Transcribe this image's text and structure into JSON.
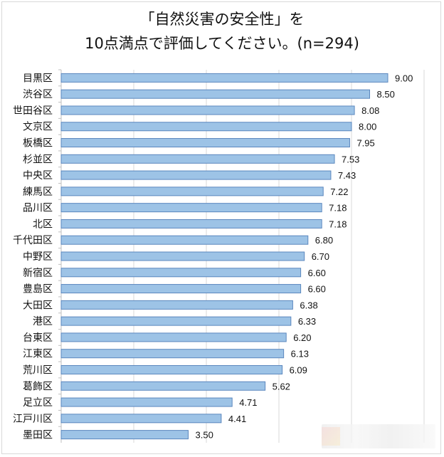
{
  "chart_data": {
    "type": "bar",
    "orientation": "horizontal",
    "title_line1": "「自然災害の安全性」を",
    "title_line2": "10点満点で評価してください。(n=294)",
    "categories": [
      "目黒区",
      "渋谷区",
      "世田谷区",
      "文京区",
      "板橋区",
      "杉並区",
      "中央区",
      "練馬区",
      "品川区",
      "北区",
      "千代田区",
      "中野区",
      "新宿区",
      "豊島区",
      "大田区",
      "港区",
      "台東区",
      "江東区",
      "荒川区",
      "葛飾区",
      "足立区",
      "江戸川区",
      "墨田区"
    ],
    "values": [
      9.0,
      8.5,
      8.08,
      8.0,
      7.95,
      7.53,
      7.43,
      7.22,
      7.18,
      7.18,
      6.8,
      6.7,
      6.6,
      6.6,
      6.38,
      6.33,
      6.2,
      6.13,
      6.09,
      5.62,
      4.71,
      4.41,
      3.5
    ],
    "value_labels": [
      "9.00",
      "8.50",
      "8.08",
      "8.00",
      "7.95",
      "7.53",
      "7.43",
      "7.22",
      "7.18",
      "7.18",
      "6.80",
      "6.70",
      "6.60",
      "6.60",
      "6.38",
      "6.33",
      "6.20",
      "6.13",
      "6.09",
      "5.62",
      "4.71",
      "4.41",
      "3.50"
    ],
    "xlim": [
      0,
      10
    ],
    "grid": true,
    "legend": "none",
    "bar_color": "#9dc3e6",
    "bar_edge_color": "#5b87be",
    "gridline_color": "#d9d9d9"
  }
}
